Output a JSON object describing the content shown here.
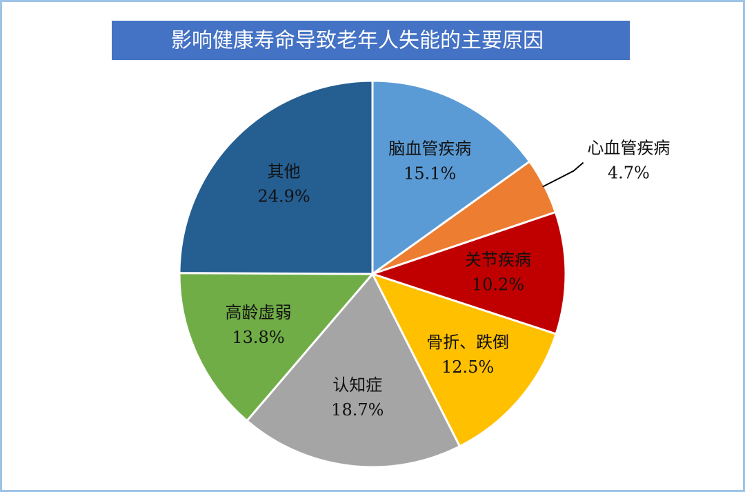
{
  "chart_data": {
    "type": "pie",
    "title": "影响健康寿命导致老年人失能的主要原因",
    "categories": [
      "脑血管疾病",
      "心血管疾病",
      "关节疾病",
      "骨折、跌倒",
      "认知症",
      "高龄虚弱",
      "其他"
    ],
    "values": [
      15.1,
      4.7,
      10.2,
      12.5,
      18.7,
      13.8,
      24.9
    ],
    "value_labels": [
      "15.1%",
      "4.7%",
      "10.2%",
      "12.5%",
      "18.7%",
      "13.8%",
      "24.9%"
    ],
    "colors": [
      "#5b9bd5",
      "#ed7d31",
      "#c00000",
      "#ffc000",
      "#a5a5a5",
      "#70ad47",
      "#255e91"
    ]
  }
}
